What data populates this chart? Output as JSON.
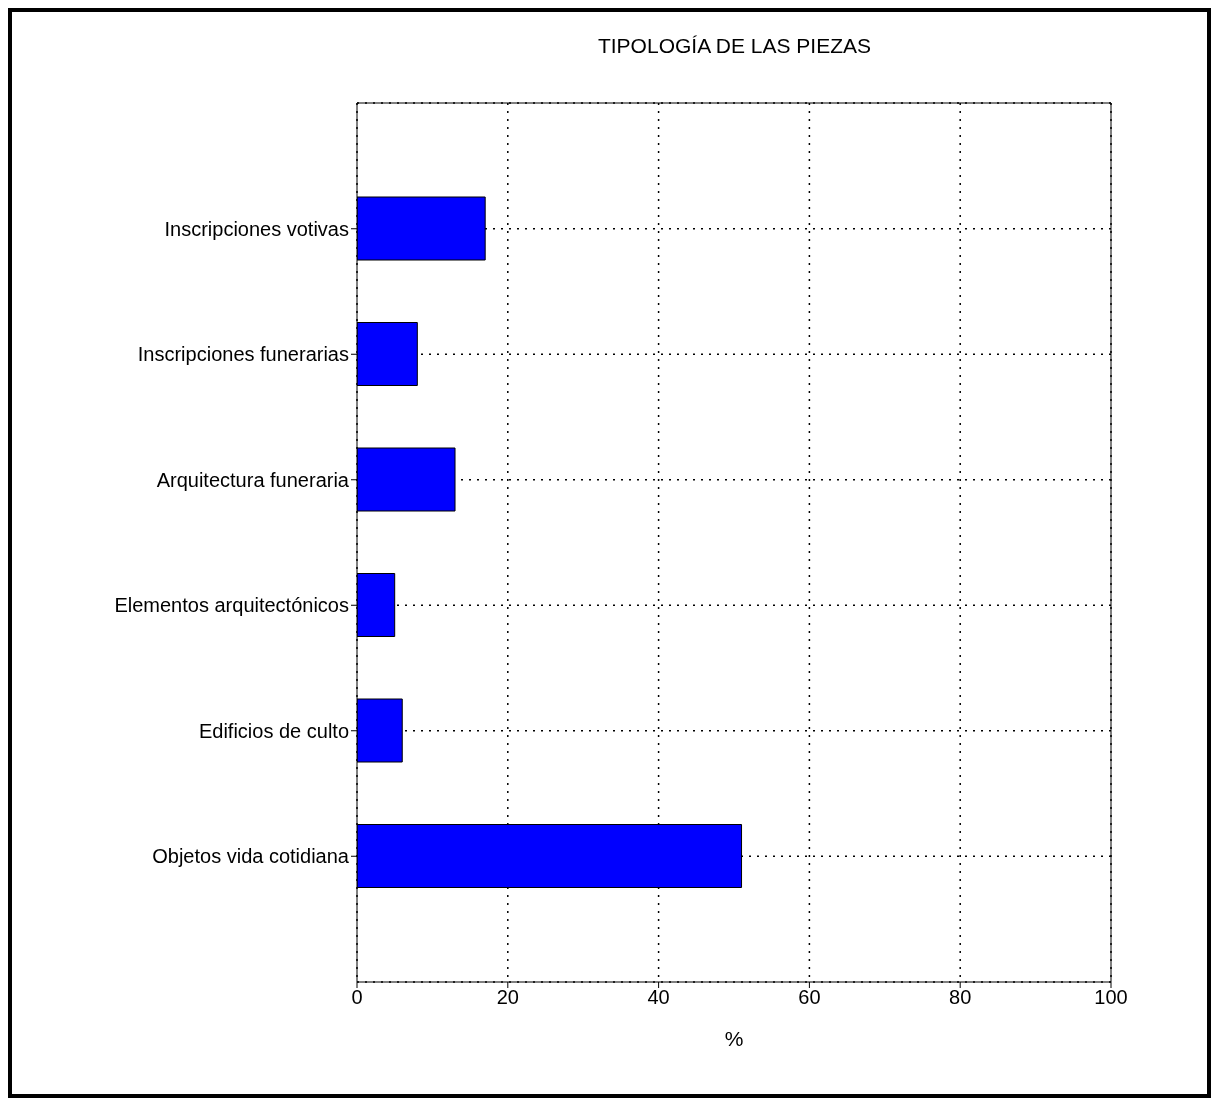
{
  "chart_data": {
    "type": "bar",
    "orientation": "horizontal",
    "title": "TIPOLOGÍA DE LAS PIEZAS",
    "xlabel": "%",
    "categories": [
      "Inscripciones votivas",
      "Inscripciones funerarias",
      "Arquitectura funeraria",
      "Elementos arquitectónicos",
      "Edificios de culto",
      "Objetos vida cotidiana"
    ],
    "values": [
      17,
      8,
      13,
      5,
      6,
      51
    ],
    "color": "#0000ff",
    "xlim": [
      0,
      100
    ],
    "xticks": [
      0,
      20,
      40,
      60,
      80,
      100
    ],
    "grid": true
  }
}
